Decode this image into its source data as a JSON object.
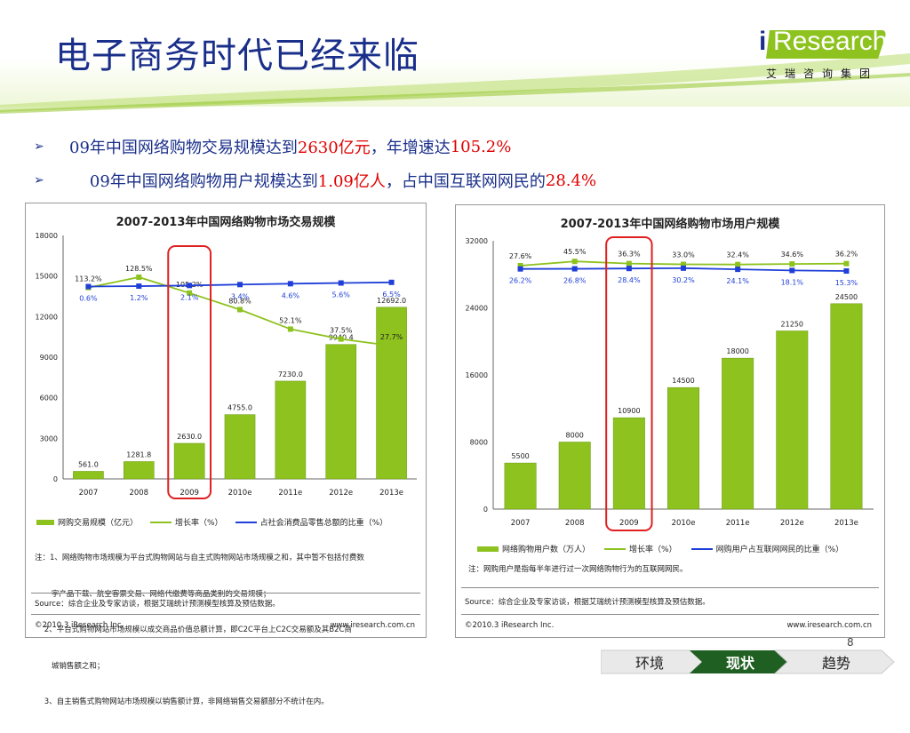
{
  "title": "电子商务时代已经来临",
  "logo": {
    "word": "Research",
    "prefix": "i",
    "sub": "艾瑞咨询集团"
  },
  "bullets": [
    {
      "pre": "09年中国网络购物交易规模达到",
      "hl1": "2630亿元",
      "mid": "，年增速达",
      "hl2": "105.2%",
      "post": ""
    },
    {
      "pre": "    09年中国网络购物用户规模达到",
      "hl1": "1.09亿人",
      "mid": "，占中国互联网网民的",
      "hl2": "28.4%",
      "post": ""
    }
  ],
  "left_chart": {
    "title": "2007-2013年中国网络购物市场交易规模",
    "legend": [
      "网购交易规模（亿元）",
      "增长率（%）",
      "占社会消费品零售总额的比重（%）"
    ],
    "notes": [
      "注：1、网络购物市场规模为平台式购物网站与自主式购物网站市场规模之和，其中暂不包括付费数",
      "       字产品下载、航空客票交易、网络代缴费等商品类别的交易规模；",
      "    2、平台式购物网站市场规模以成交商品价值总额计算，即C2C平台上C2C交易额及其B2C商",
      "       城销售额之和；",
      "    3、自主销售式购物网站市场规模以销售额计算，非网络销售交易额部分不统计在内。"
    ],
    "source": "Source：综合企业及专家访谈，根据艾瑞统计预测模型核算及预估数据。",
    "copyright": "©2010.3 iResearch Inc.",
    "website": "www.iresearch.com.cn"
  },
  "right_chart": {
    "title": "2007-2013年中国网络购物市场用户规模",
    "legend": [
      "网络购物用户数（万人）",
      "增长率（%）",
      "网购用户占互联网网民的比重（%）"
    ],
    "notes": [
      "注：网购用户是指每半年进行过一次网络购物行为的互联网网民。"
    ],
    "source": "Source：综合企业及专家访谈，根据艾瑞统计预测模型核算及预估数据。",
    "copyright": "©2010.3 iResearch Inc.",
    "website": "www.iresearch.com.cn"
  },
  "nav": {
    "items": [
      "环境",
      "现状",
      "趋势"
    ],
    "active": 1
  },
  "page_number": "8",
  "colors": {
    "bar": "#8dc21f",
    "growth": "#8dc21f",
    "share": "#1f3fd8",
    "title": "#1a2f8a",
    "highlight": "#e00000"
  },
  "chart_data": [
    {
      "type": "bar",
      "title": "2007-2013年中国网络购物市场交易规模",
      "categories": [
        "2007",
        "2008",
        "2009",
        "2010e",
        "2011e",
        "2012e",
        "2013e"
      ],
      "ylim": [
        0,
        18000
      ],
      "yticks": [
        0,
        3000,
        6000,
        9000,
        12000,
        15000,
        18000
      ],
      "series": [
        {
          "name": "网购交易规模（亿元）",
          "type": "bar",
          "values": [
            561.0,
            1281.8,
            2630.0,
            4755.0,
            7230.0,
            9940.4,
            12692.0
          ],
          "labels": [
            "561.0",
            "1281.8",
            "2630.0",
            "4755.0",
            "7230.0",
            "9940.4",
            "12692.0"
          ]
        },
        {
          "name": "增长率（%）",
          "type": "line",
          "values": [
            113.2,
            128.5,
            105.2,
            80.8,
            52.1,
            37.5,
            27.7
          ],
          "labels": [
            "113.2%",
            "128.5%",
            "105.2%",
            "80.8%",
            "52.1%",
            "37.5%",
            "27.7%"
          ]
        },
        {
          "name": "占社会消费品零售总额的比重（%）",
          "type": "line",
          "values": [
            0.6,
            1.2,
            2.1,
            3.4,
            4.6,
            5.6,
            6.5
          ],
          "labels": [
            "0.6%",
            "1.2%",
            "2.1%",
            "3.4%",
            "4.6%",
            "5.6%",
            "6.5%"
          ]
        }
      ],
      "highlight": "2009"
    },
    {
      "type": "bar",
      "title": "2007-2013年中国网络购物市场用户规模",
      "categories": [
        "2007",
        "2008",
        "2009",
        "2010e",
        "2011e",
        "2012e",
        "2013e"
      ],
      "ylim": [
        0,
        32000
      ],
      "yticks": [
        0,
        8000,
        16000,
        24000,
        32000
      ],
      "series": [
        {
          "name": "网络购物用户数（万人）",
          "type": "bar",
          "values": [
            5500,
            8000,
            10900,
            14500,
            18000,
            21250,
            24500
          ],
          "labels": [
            "5500",
            "8000",
            "10900",
            "14500",
            "18000",
            "21250",
            "24500"
          ]
        },
        {
          "name": "增长率（%）",
          "type": "line",
          "values": [
            27.6,
            45.5,
            36.3,
            33.0,
            32.4,
            34.6,
            36.2
          ],
          "labels": [
            "27.6%",
            "45.5%",
            "36.3%",
            "33.0%",
            "32.4%",
            "34.6%",
            "36.2%"
          ]
        },
        {
          "name": "网购用户占互联网网民的比重（%）",
          "type": "line",
          "values": [
            26.2,
            26.8,
            28.4,
            30.2,
            24.1,
            18.1,
            15.3
          ],
          "labels": [
            "26.2%",
            "26.8%",
            "28.4%",
            "30.2%",
            "24.1%",
            "18.1%",
            "15.3%"
          ]
        }
      ],
      "highlight": "2009"
    }
  ]
}
